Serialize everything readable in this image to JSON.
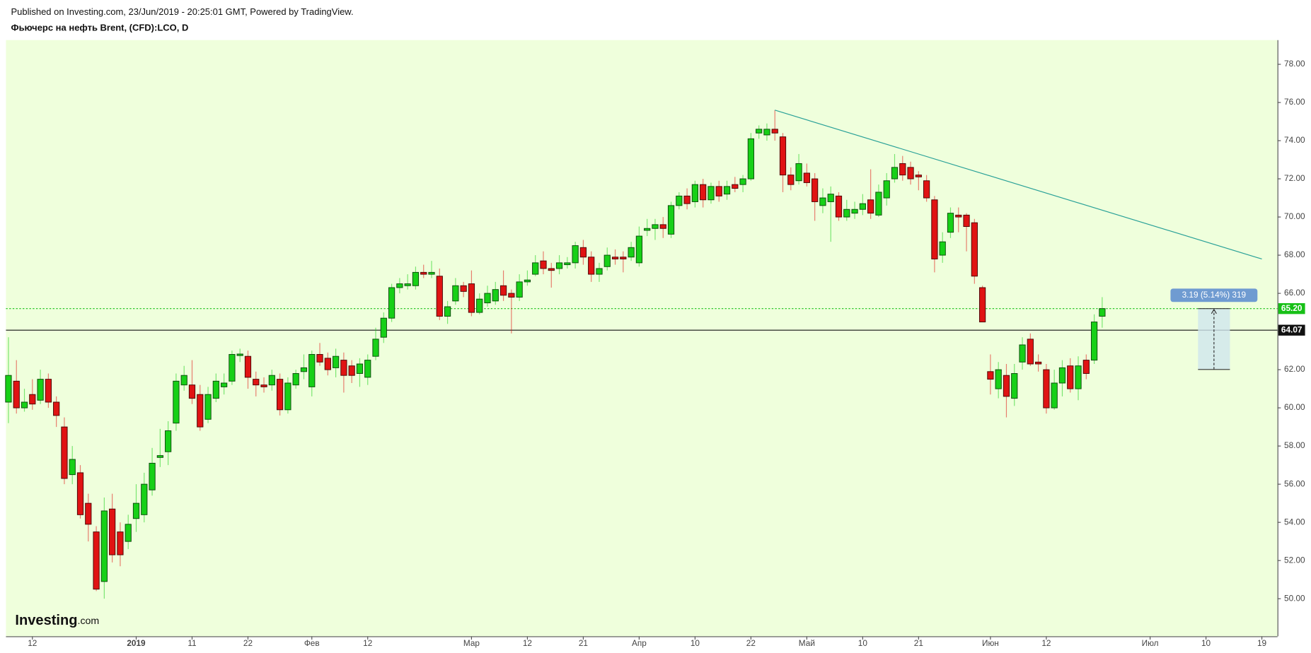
{
  "header": {
    "published": "Published on Investing.com, 23/Jun/2019 - 20:25:01 GMT, Powered by TradingView.",
    "logo": "Investing",
    "logo_suffix": ".com"
  },
  "chart_data": {
    "type": "candlestick",
    "title": "Фьючерс на нефть Brent, (CFD):LCO, D",
    "categories": [
      null,
      null,
      null,
      "12",
      null,
      null,
      null,
      null,
      null,
      null,
      null,
      null,
      null,
      null,
      null,
      null,
      "2019",
      null,
      null,
      null,
      null,
      null,
      null,
      "11",
      null,
      null,
      null,
      null,
      null,
      null,
      "22",
      null,
      null,
      null,
      null,
      null,
      null,
      null,
      "Фев",
      null,
      null,
      null,
      null,
      null,
      null,
      "12",
      null,
      null,
      null,
      null,
      null,
      null,
      null,
      null,
      null,
      null,
      null,
      null,
      "Мар",
      null,
      null,
      null,
      null,
      null,
      null,
      "12",
      null,
      null,
      null,
      null,
      null,
      null,
      "21",
      null,
      null,
      null,
      null,
      null,
      null,
      "Апр",
      null,
      null,
      null,
      null,
      null,
      null,
      "10",
      null,
      null,
      null,
      null,
      null,
      null,
      "22",
      null,
      null,
      null,
      null,
      null,
      null,
      "Май",
      null,
      null,
      null,
      null,
      null,
      null,
      "10",
      null,
      null,
      null,
      null,
      null,
      null,
      "21",
      null,
      null,
      null,
      null,
      null,
      null,
      null,
      null,
      "Июн",
      null,
      null,
      null,
      null,
      null,
      null,
      "12",
      null,
      null,
      null,
      null,
      null,
      null,
      null,
      null,
      null,
      null,
      null,
      null,
      "Июл",
      null,
      null,
      null,
      null,
      null,
      null,
      "10",
      null,
      null,
      null,
      null,
      null,
      null,
      "19"
    ],
    "open": [
      60.3,
      61.4,
      60.0,
      60.7,
      60.4,
      61.5,
      60.3,
      59.0,
      56.5,
      56.6,
      55.0,
      53.5,
      50.9,
      54.7,
      53.5,
      53.0,
      54.2,
      54.4,
      55.7,
      57.4,
      57.7,
      59.2,
      61.2,
      61.2,
      60.7,
      59.4,
      60.5,
      61.1,
      61.4,
      62.74,
      62.7,
      61.5,
      61.2,
      61.2,
      61.5,
      59.9,
      61.2,
      61.9,
      61.1,
      62.8,
      62.6,
      62.1,
      62.5,
      62.2,
      61.8,
      61.6,
      62.7,
      63.7,
      64.7,
      66.3,
      66.4,
      66.4,
      67.1,
      67.0,
      66.9,
      64.8,
      65.6,
      66.4,
      66.5,
      65.0,
      65.5,
      65.6,
      66.4,
      66.0,
      65.8,
      66.6,
      67.0,
      67.7,
      67.3,
      67.3,
      67.5,
      67.6,
      68.4,
      67.9,
      67.0,
      67.4,
      67.9,
      67.9,
      67.9,
      67.6,
      69.3,
      69.4,
      69.6,
      69.1,
      70.6,
      71.1,
      70.8,
      71.7,
      70.9,
      71.6,
      71.2,
      71.7,
      71.7,
      72.0,
      74.4,
      74.3,
      74.6,
      74.2,
      72.2,
      71.9,
      72.3,
      72.0,
      70.6,
      70.8,
      71.1,
      70.0,
      70.2,
      70.4,
      70.9,
      70.1,
      71.0,
      72.0,
      72.8,
      72.6,
      72.2,
      71.9,
      70.9,
      68.0,
      69.2,
      70.1,
      70.1,
      69.7,
      66.3,
      61.9,
      61.0,
      61.7,
      60.5,
      62.4,
      63.6,
      62.4,
      62.0,
      60.0,
      61.3,
      62.2,
      61.0,
      62.5,
      62.5,
      64.8,
      null,
      null,
      null,
      null,
      null,
      null,
      null,
      null,
      null,
      null,
      null,
      null,
      null,
      null,
      null,
      null,
      null,
      null,
      null,
      null
    ],
    "high": [
      63.7,
      62.5,
      61.0,
      61.5,
      62.0,
      61.8,
      60.6,
      59.5,
      58.0,
      57.0,
      55.5,
      53.8,
      55.3,
      55.5,
      54.0,
      54.4,
      56.0,
      56.6,
      57.9,
      58.9,
      59.3,
      61.8,
      62.2,
      62.5,
      61.2,
      61.1,
      61.8,
      61.8,
      63.0,
      63.1,
      63.0,
      61.9,
      61.6,
      62.0,
      61.8,
      61.6,
      62.0,
      62.8,
      63.0,
      63.4,
      62.9,
      63.1,
      62.9,
      62.5,
      62.6,
      62.8,
      64.2,
      65.0,
      66.5,
      66.8,
      67.0,
      67.4,
      67.5,
      67.7,
      67.3,
      65.6,
      66.8,
      66.6,
      67.2,
      66.0,
      66.4,
      66.6,
      67.2,
      66.2,
      67.0,
      67.2,
      68.0,
      68.2,
      67.6,
      68.0,
      67.9,
      68.7,
      68.8,
      68.2,
      67.6,
      68.4,
      68.3,
      68.2,
      68.7,
      69.5,
      69.9,
      69.9,
      70.0,
      70.8,
      71.3,
      71.5,
      71.9,
      72.0,
      71.8,
      71.9,
      71.9,
      72.1,
      72.2,
      74.4,
      74.8,
      74.9,
      75.6,
      74.4,
      72.6,
      73.3,
      72.8,
      72.3,
      71.5,
      71.6,
      71.3,
      70.9,
      70.8,
      71.2,
      72.5,
      71.7,
      72.3,
      73.3,
      73.2,
      72.9,
      72.4,
      72.2,
      71.1,
      69.2,
      70.5,
      70.5,
      70.2,
      69.9,
      66.4,
      62.8,
      62.4,
      62.3,
      62.3,
      63.7,
      63.9,
      62.8,
      62.3,
      62.0,
      62.5,
      62.6,
      62.7,
      62.8,
      64.9,
      65.8,
      null,
      null,
      null,
      null,
      null,
      null,
      null,
      null,
      null,
      null,
      null,
      null,
      null,
      null,
      null,
      null,
      null,
      null,
      null,
      null
    ],
    "low": [
      59.2,
      59.7,
      59.8,
      59.9,
      60.2,
      60.0,
      59.0,
      56.0,
      56.0,
      54.2,
      53.0,
      50.4,
      50.0,
      51.9,
      51.7,
      52.6,
      53.5,
      54.0,
      55.4,
      56.9,
      57.0,
      58.8,
      60.9,
      60.2,
      58.8,
      59.2,
      60.3,
      60.7,
      61.2,
      62.4,
      61.0,
      60.6,
      60.8,
      60.9,
      59.6,
      59.7,
      61.0,
      61.5,
      60.6,
      62.2,
      61.7,
      61.6,
      60.8,
      61.3,
      61.1,
      61.2,
      62.5,
      63.4,
      64.5,
      66.0,
      66.2,
      66.2,
      66.8,
      66.8,
      64.6,
      64.4,
      65.4,
      65.8,
      64.8,
      64.9,
      65.3,
      65.4,
      65.6,
      63.9,
      65.6,
      66.4,
      66.9,
      67.0,
      66.3,
      67.0,
      67.3,
      67.3,
      67.5,
      66.6,
      66.6,
      67.2,
      67.5,
      67.1,
      67.7,
      67.4,
      69.0,
      68.8,
      68.9,
      68.9,
      70.4,
      70.4,
      70.5,
      70.5,
      70.7,
      70.8,
      70.9,
      71.3,
      71.3,
      71.9,
      74.1,
      74.0,
      74.0,
      71.3,
      71.4,
      71.7,
      71.6,
      69.8,
      70.2,
      68.7,
      69.8,
      69.8,
      69.9,
      70.1,
      69.9,
      70.0,
      70.6,
      71.8,
      71.9,
      71.7,
      71.4,
      70.8,
      67.1,
      67.6,
      68.9,
      69.2,
      68.2,
      66.5,
      64.5,
      60.7,
      60.5,
      59.5,
      60.1,
      62.0,
      62.2,
      61.9,
      59.7,
      59.9,
      60.6,
      60.8,
      60.4,
      61.5,
      62.3,
      64.2,
      null,
      null,
      null,
      null,
      null,
      null,
      null,
      null,
      null,
      null,
      null,
      null,
      null,
      null,
      null,
      null,
      null,
      null,
      null,
      null
    ],
    "close": [
      61.7,
      60.0,
      60.3,
      60.2,
      61.5,
      60.3,
      59.6,
      56.3,
      57.3,
      54.4,
      53.9,
      50.5,
      54.6,
      52.3,
      52.3,
      53.9,
      55.0,
      56.0,
      57.1,
      57.5,
      58.8,
      61.4,
      61.7,
      60.5,
      59.0,
      60.7,
      61.4,
      61.3,
      62.8,
      62.82,
      61.6,
      61.2,
      61.1,
      61.7,
      59.9,
      61.3,
      61.8,
      62.1,
      62.8,
      62.4,
      62.0,
      62.7,
      61.7,
      61.7,
      62.3,
      62.5,
      63.6,
      64.7,
      66.3,
      66.5,
      66.5,
      67.1,
      67.0,
      67.1,
      64.8,
      65.3,
      66.4,
      66.1,
      65.0,
      65.7,
      66.0,
      66.2,
      65.9,
      65.8,
      66.6,
      66.7,
      67.6,
      67.3,
      67.2,
      67.6,
      67.6,
      68.5,
      67.9,
      67.0,
      67.3,
      68.0,
      67.8,
      67.8,
      68.4,
      69.0,
      69.4,
      69.6,
      69.4,
      70.6,
      71.1,
      70.7,
      71.7,
      70.9,
      71.6,
      71.1,
      71.6,
      71.5,
      72.0,
      74.1,
      74.6,
      74.6,
      74.4,
      72.2,
      71.7,
      72.8,
      71.8,
      70.8,
      71.0,
      71.2,
      70.0,
      70.4,
      70.4,
      70.7,
      70.2,
      71.3,
      71.9,
      72.6,
      72.2,
      72.0,
      72.1,
      71.0,
      67.8,
      68.7,
      70.2,
      70.0,
      69.5,
      66.9,
      64.5,
      61.5,
      62.0,
      60.6,
      61.8,
      63.3,
      62.3,
      62.3,
      60.0,
      61.3,
      62.1,
      61.0,
      62.2,
      61.8,
      64.5,
      65.2,
      null,
      null,
      null,
      null,
      null,
      null,
      null,
      null,
      null,
      null,
      null,
      null,
      null,
      null,
      null,
      null,
      null,
      null,
      null,
      null
    ],
    "up_color": "#17d017",
    "down_color": "#e01313",
    "ylim": [
      48.03,
      79.27
    ],
    "yticks": [
      {
        "value": 50,
        "label": "50.00"
      },
      {
        "value": 52,
        "label": "52.00"
      },
      {
        "value": 54,
        "label": "54.00"
      },
      {
        "value": 56,
        "label": "56.00"
      },
      {
        "value": 58,
        "label": "58.00"
      },
      {
        "value": 60,
        "label": "60.00"
      },
      {
        "value": 62,
        "label": "62.00"
      },
      {
        "value": 64,
        "label": "64.00"
      },
      {
        "value": 66,
        "label": "66.00"
      },
      {
        "value": 68,
        "label": "68.00"
      },
      {
        "value": 70,
        "label": "70.00"
      },
      {
        "value": 72,
        "label": "72.00"
      },
      {
        "value": 74,
        "label": "74.00"
      },
      {
        "value": 76,
        "label": "76.00"
      },
      {
        "value": 78,
        "label": "78.00"
      }
    ],
    "grid": false,
    "last_price": {
      "value": 65.2,
      "label": "65.20",
      "color": "#17c017"
    },
    "level": {
      "value": 64.07,
      "label": "64.07",
      "color": "#111111"
    },
    "trend_line": {
      "start_index": 96,
      "end_index": 157,
      "values": [
        75.6,
        67.8
      ],
      "color": "#2aa198"
    },
    "measure": {
      "start_index": 149,
      "end_index": 153,
      "from": 62.01,
      "to": 65.2,
      "label": "3.19 (5.14%) 319",
      "color": "#6f9bd1"
    }
  }
}
